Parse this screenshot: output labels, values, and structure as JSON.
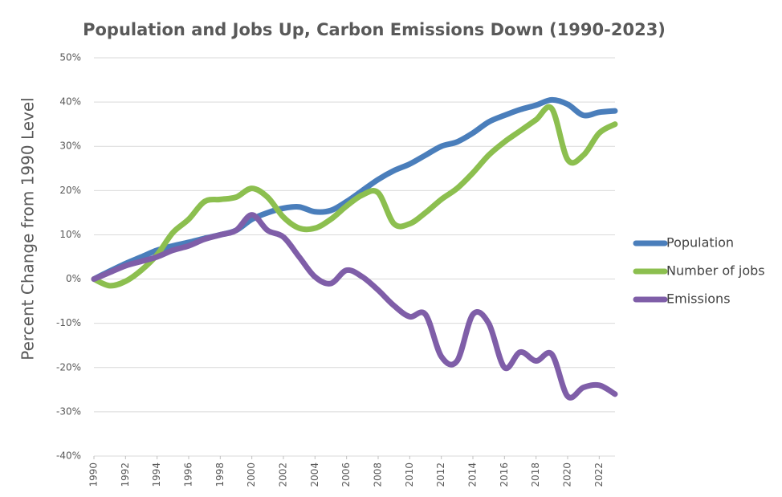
{
  "chart_data": {
    "type": "line",
    "title": "Population and Jobs Up, Carbon Emissions Down (1990-2023)",
    "y_label": "Percent Change from 1990 Level",
    "x": [
      1990,
      1991,
      1992,
      1993,
      1994,
      1995,
      1996,
      1997,
      1998,
      1999,
      2000,
      2001,
      2002,
      2003,
      2004,
      2005,
      2006,
      2007,
      2008,
      2009,
      2010,
      2011,
      2012,
      2013,
      2014,
      2015,
      2016,
      2017,
      2018,
      2019,
      2020,
      2021,
      2022,
      2023
    ],
    "xlim": [
      1990,
      2023
    ],
    "xticks": [
      1990,
      1992,
      1994,
      1996,
      1998,
      2000,
      2002,
      2004,
      2006,
      2008,
      2010,
      2012,
      2014,
      2016,
      2018,
      2020,
      2022
    ],
    "ylim": [
      -40,
      50
    ],
    "yticks": [
      {
        "value": -40,
        "label": "-40%"
      },
      {
        "value": -30,
        "label": "-30%"
      },
      {
        "value": -20,
        "label": "-20%"
      },
      {
        "value": -10,
        "label": "-10%"
      },
      {
        "value": 0,
        "label": "0%"
      },
      {
        "value": 10,
        "label": "10%"
      },
      {
        "value": 20,
        "label": "20%"
      },
      {
        "value": 30,
        "label": "30%"
      },
      {
        "value": 40,
        "label": "40%"
      },
      {
        "value": 50,
        "label": "50%"
      }
    ],
    "grid": true,
    "legend": "right",
    "series": [
      {
        "name": "Population",
        "color": "#4a7ebb",
        "values": [
          0,
          1.8,
          3.5,
          5,
          6.5,
          7.5,
          8.3,
          9.2,
          10,
          11,
          13.5,
          15,
          16,
          16.3,
          15.2,
          15.5,
          17.5,
          20,
          22.5,
          24.5,
          26,
          28,
          30,
          31,
          33,
          35.5,
          37,
          38.3,
          39.3,
          40.5,
          39.5,
          37,
          37.7,
          38
        ]
      },
      {
        "name": "Number of jobs",
        "color": "#8cbf4f",
        "values": [
          0,
          -1.5,
          -0.5,
          2,
          5.5,
          10.5,
          13.5,
          17.5,
          18,
          18.5,
          20.5,
          18.5,
          14,
          11.5,
          11.5,
          13.5,
          16.5,
          19,
          19.5,
          12.5,
          12.5,
          15,
          18,
          20.5,
          24,
          28,
          31,
          33.5,
          36,
          38.5,
          27,
          28,
          33,
          35
        ]
      },
      {
        "name": "Emissions",
        "color": "#7f5ea8",
        "values": [
          0,
          1.5,
          3,
          4,
          5,
          6.5,
          7.5,
          9,
          10,
          11,
          14.5,
          11,
          9.5,
          5,
          0.5,
          -1,
          2,
          0.5,
          -2.5,
          -6,
          -8.5,
          -8,
          -17.5,
          -18.5,
          -8,
          -10,
          -20,
          -16.5,
          -18.5,
          -17,
          -26.5,
          -24.5,
          -24,
          -26
        ]
      }
    ]
  }
}
